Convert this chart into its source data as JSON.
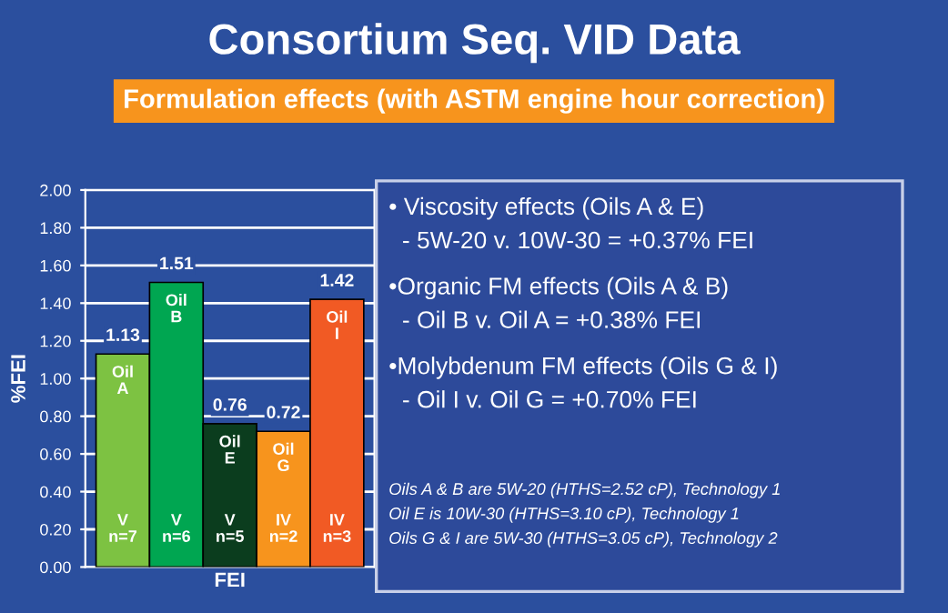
{
  "chart_data": {
    "type": "bar",
    "title": "Consortium Seq. VID Data",
    "subtitle": "Formulation effects (with ASTM engine hour correction)",
    "xlabel": "FEI",
    "ylabel": "%FEI",
    "categories": [
      "Oil A",
      "Oil B",
      "Oil E",
      "Oil G",
      "Oil I"
    ],
    "values": [
      1.13,
      1.51,
      0.76,
      0.72,
      1.42
    ],
    "colors": [
      "#7dc242",
      "#00a651",
      "#0b3d1e",
      "#f7941d",
      "#f15a24"
    ],
    "data_labels": true,
    "ylim": [
      0,
      2
    ],
    "yticks": [
      {
        "value": 0,
        "label": "0.00"
      },
      {
        "value": 0.2,
        "label": "0.20"
      },
      {
        "value": 0.4,
        "label": "0.40"
      },
      {
        "value": 0.6,
        "label": "0.60"
      },
      {
        "value": 0.8,
        "label": "0.80"
      },
      {
        "value": 1.0,
        "label": "1.00"
      },
      {
        "value": 1.2,
        "label": "1.20"
      },
      {
        "value": 1.4,
        "label": "1.40"
      },
      {
        "value": 1.6,
        "label": "1.60"
      },
      {
        "value": 1.8,
        "label": "1.80"
      },
      {
        "value": 2.0,
        "label": "2.00"
      }
    ],
    "grid": "y",
    "annotations": [
      "• Viscosity effects (Oils A & E)",
      "  - 5W-20 v. 10W-30 = +0.37% FEI",
      "•Organic FM effects (Oils A & B)",
      "  - Oil B v. Oil A = +0.38% FEI",
      "•Molybdenum FM effects (Oils G & I)",
      "  - Oil I v. Oil G = +0.70% FEI",
      "Oils A & B are 5W-20 (HTHS=2.52 cP), Technology 1",
      "Oil E is 10W-30 (HTHS=3.10 cP), Technology 1",
      "Oils G & I are 5W-30 (HTHS=3.05 cP), Technology 2",
      "V n=7",
      "V n=6",
      "V n=5",
      "IV n=2",
      "IV n=3"
    ]
  }
}
